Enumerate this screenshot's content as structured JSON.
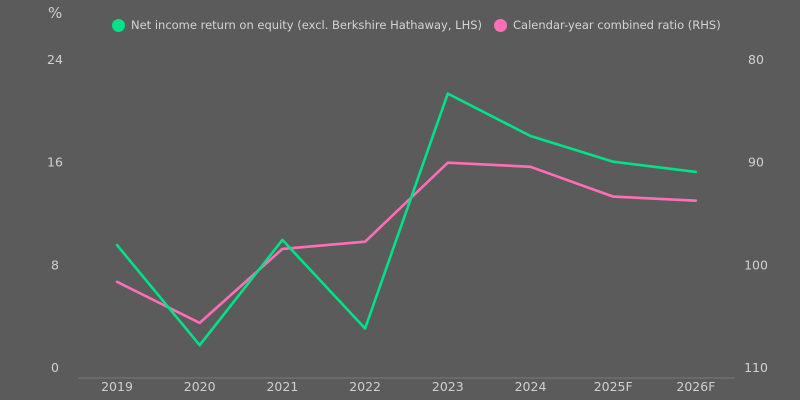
{
  "chart_data": {
    "type": "line",
    "categories": [
      "2019",
      "2020",
      "2021",
      "2022",
      "2023",
      "2024",
      "2025F",
      "2026F"
    ],
    "left_axis": {
      "unit": "%",
      "ticks": [
        0,
        8,
        16,
        24
      ],
      "ylim": [
        0,
        24
      ]
    },
    "right_axis": {
      "ticks": [
        80,
        90,
        100,
        110
      ],
      "ylim": [
        80,
        110
      ],
      "inverted": true
    },
    "series": [
      {
        "name": "Net income return on equity (excl. Berkshire Hathaway, LHS)",
        "axis": "left",
        "color": "#00e28a",
        "values": [
          9.5,
          1.7,
          9.9,
          3.0,
          21.3,
          18.0,
          16.0,
          15.2
        ]
      },
      {
        "name": "Calendar-year combined ratio (RHS)",
        "axis": "right",
        "color": "#ff6fb7",
        "values": [
          101.7,
          105.7,
          98.5,
          97.8,
          90.1,
          90.5,
          93.4,
          93.8
        ]
      }
    ],
    "grid": false,
    "legend_position": "top"
  }
}
